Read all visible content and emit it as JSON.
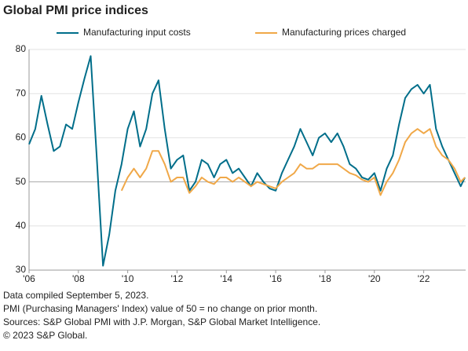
{
  "chart_data": {
    "type": "line",
    "title": "Global PMI price indices",
    "x": [
      2006,
      2006.25,
      2006.5,
      2006.75,
      2007,
      2007.25,
      2007.5,
      2007.75,
      2008,
      2008.25,
      2008.5,
      2008.75,
      2009,
      2009.25,
      2009.5,
      2009.75,
      2010,
      2010.25,
      2010.5,
      2010.75,
      2011,
      2011.25,
      2011.5,
      2011.75,
      2012,
      2012.25,
      2012.5,
      2012.75,
      2013,
      2013.25,
      2013.5,
      2013.75,
      2014,
      2014.25,
      2014.5,
      2014.75,
      2015,
      2015.25,
      2015.5,
      2015.75,
      2016,
      2016.25,
      2016.5,
      2016.75,
      2017,
      2017.25,
      2017.5,
      2017.75,
      2018,
      2018.25,
      2018.5,
      2018.75,
      2019,
      2019.25,
      2019.5,
      2019.75,
      2020,
      2020.25,
      2020.5,
      2020.75,
      2021,
      2021.25,
      2021.5,
      2021.75,
      2022,
      2022.25,
      2022.5,
      2022.75,
      2023,
      2023.25,
      2023.5,
      2023.67
    ],
    "series": [
      {
        "name": "Manufacturing input costs",
        "color": "#006e8a",
        "values": [
          58.5,
          62,
          69.5,
          63,
          57,
          58,
          63,
          62,
          68,
          73.5,
          78.5,
          55,
          31,
          38,
          48,
          54,
          62,
          66,
          58,
          62,
          70,
          73,
          62,
          53,
          55,
          56,
          48,
          50,
          55,
          54,
          51,
          54,
          55,
          52,
          53,
          51,
          49,
          52,
          50,
          48.5,
          48,
          52,
          55,
          58,
          62,
          59,
          56,
          60,
          61,
          59,
          61,
          58,
          54,
          53,
          51,
          50.5,
          52,
          48,
          53,
          56,
          63,
          69,
          71,
          72,
          70,
          72,
          62,
          58,
          55,
          52,
          49,
          51
        ]
      },
      {
        "name": "Manufacturing prices charged",
        "color": "#f0a848",
        "values": [
          null,
          null,
          null,
          null,
          null,
          null,
          null,
          null,
          null,
          null,
          null,
          null,
          null,
          null,
          null,
          48,
          51,
          53,
          51,
          53,
          57,
          57,
          54,
          50,
          51,
          51,
          47.5,
          49,
          51,
          50,
          49.5,
          51,
          51,
          50,
          51,
          50,
          49,
          50,
          49.5,
          49,
          48.5,
          50,
          51,
          52,
          54,
          53,
          53,
          54,
          54,
          54,
          54,
          53,
          52,
          51.5,
          50.5,
          50,
          51,
          47,
          50,
          52,
          55,
          59,
          61,
          62,
          61,
          62,
          58,
          56,
          55,
          53,
          50,
          51
        ]
      }
    ],
    "xlim": [
      2006,
      2023.7
    ],
    "xticks": [
      {
        "value": 2006,
        "label": "'06"
      },
      {
        "value": 2008,
        "label": "'08"
      },
      {
        "value": 2010,
        "label": "'10"
      },
      {
        "value": 2012,
        "label": "'12"
      },
      {
        "value": 2014,
        "label": "'14"
      },
      {
        "value": 2016,
        "label": "'16"
      },
      {
        "value": 2018,
        "label": "'18"
      },
      {
        "value": 2020,
        "label": "'20"
      },
      {
        "value": 2022,
        "label": "'22"
      }
    ],
    "ylim": [
      30,
      80
    ],
    "yticks": [
      30,
      40,
      50,
      60,
      70,
      80
    ],
    "grid": true,
    "notes": [
      "Data compiled September 5, 2023.",
      "PMI (Purchasing Managers' Index) value of 50 = no change on prior month.",
      "Sources: S&P Global PMI with J.P. Morgan, S&P Global Market Intelligence.",
      "© 2023 S&P Global."
    ]
  }
}
